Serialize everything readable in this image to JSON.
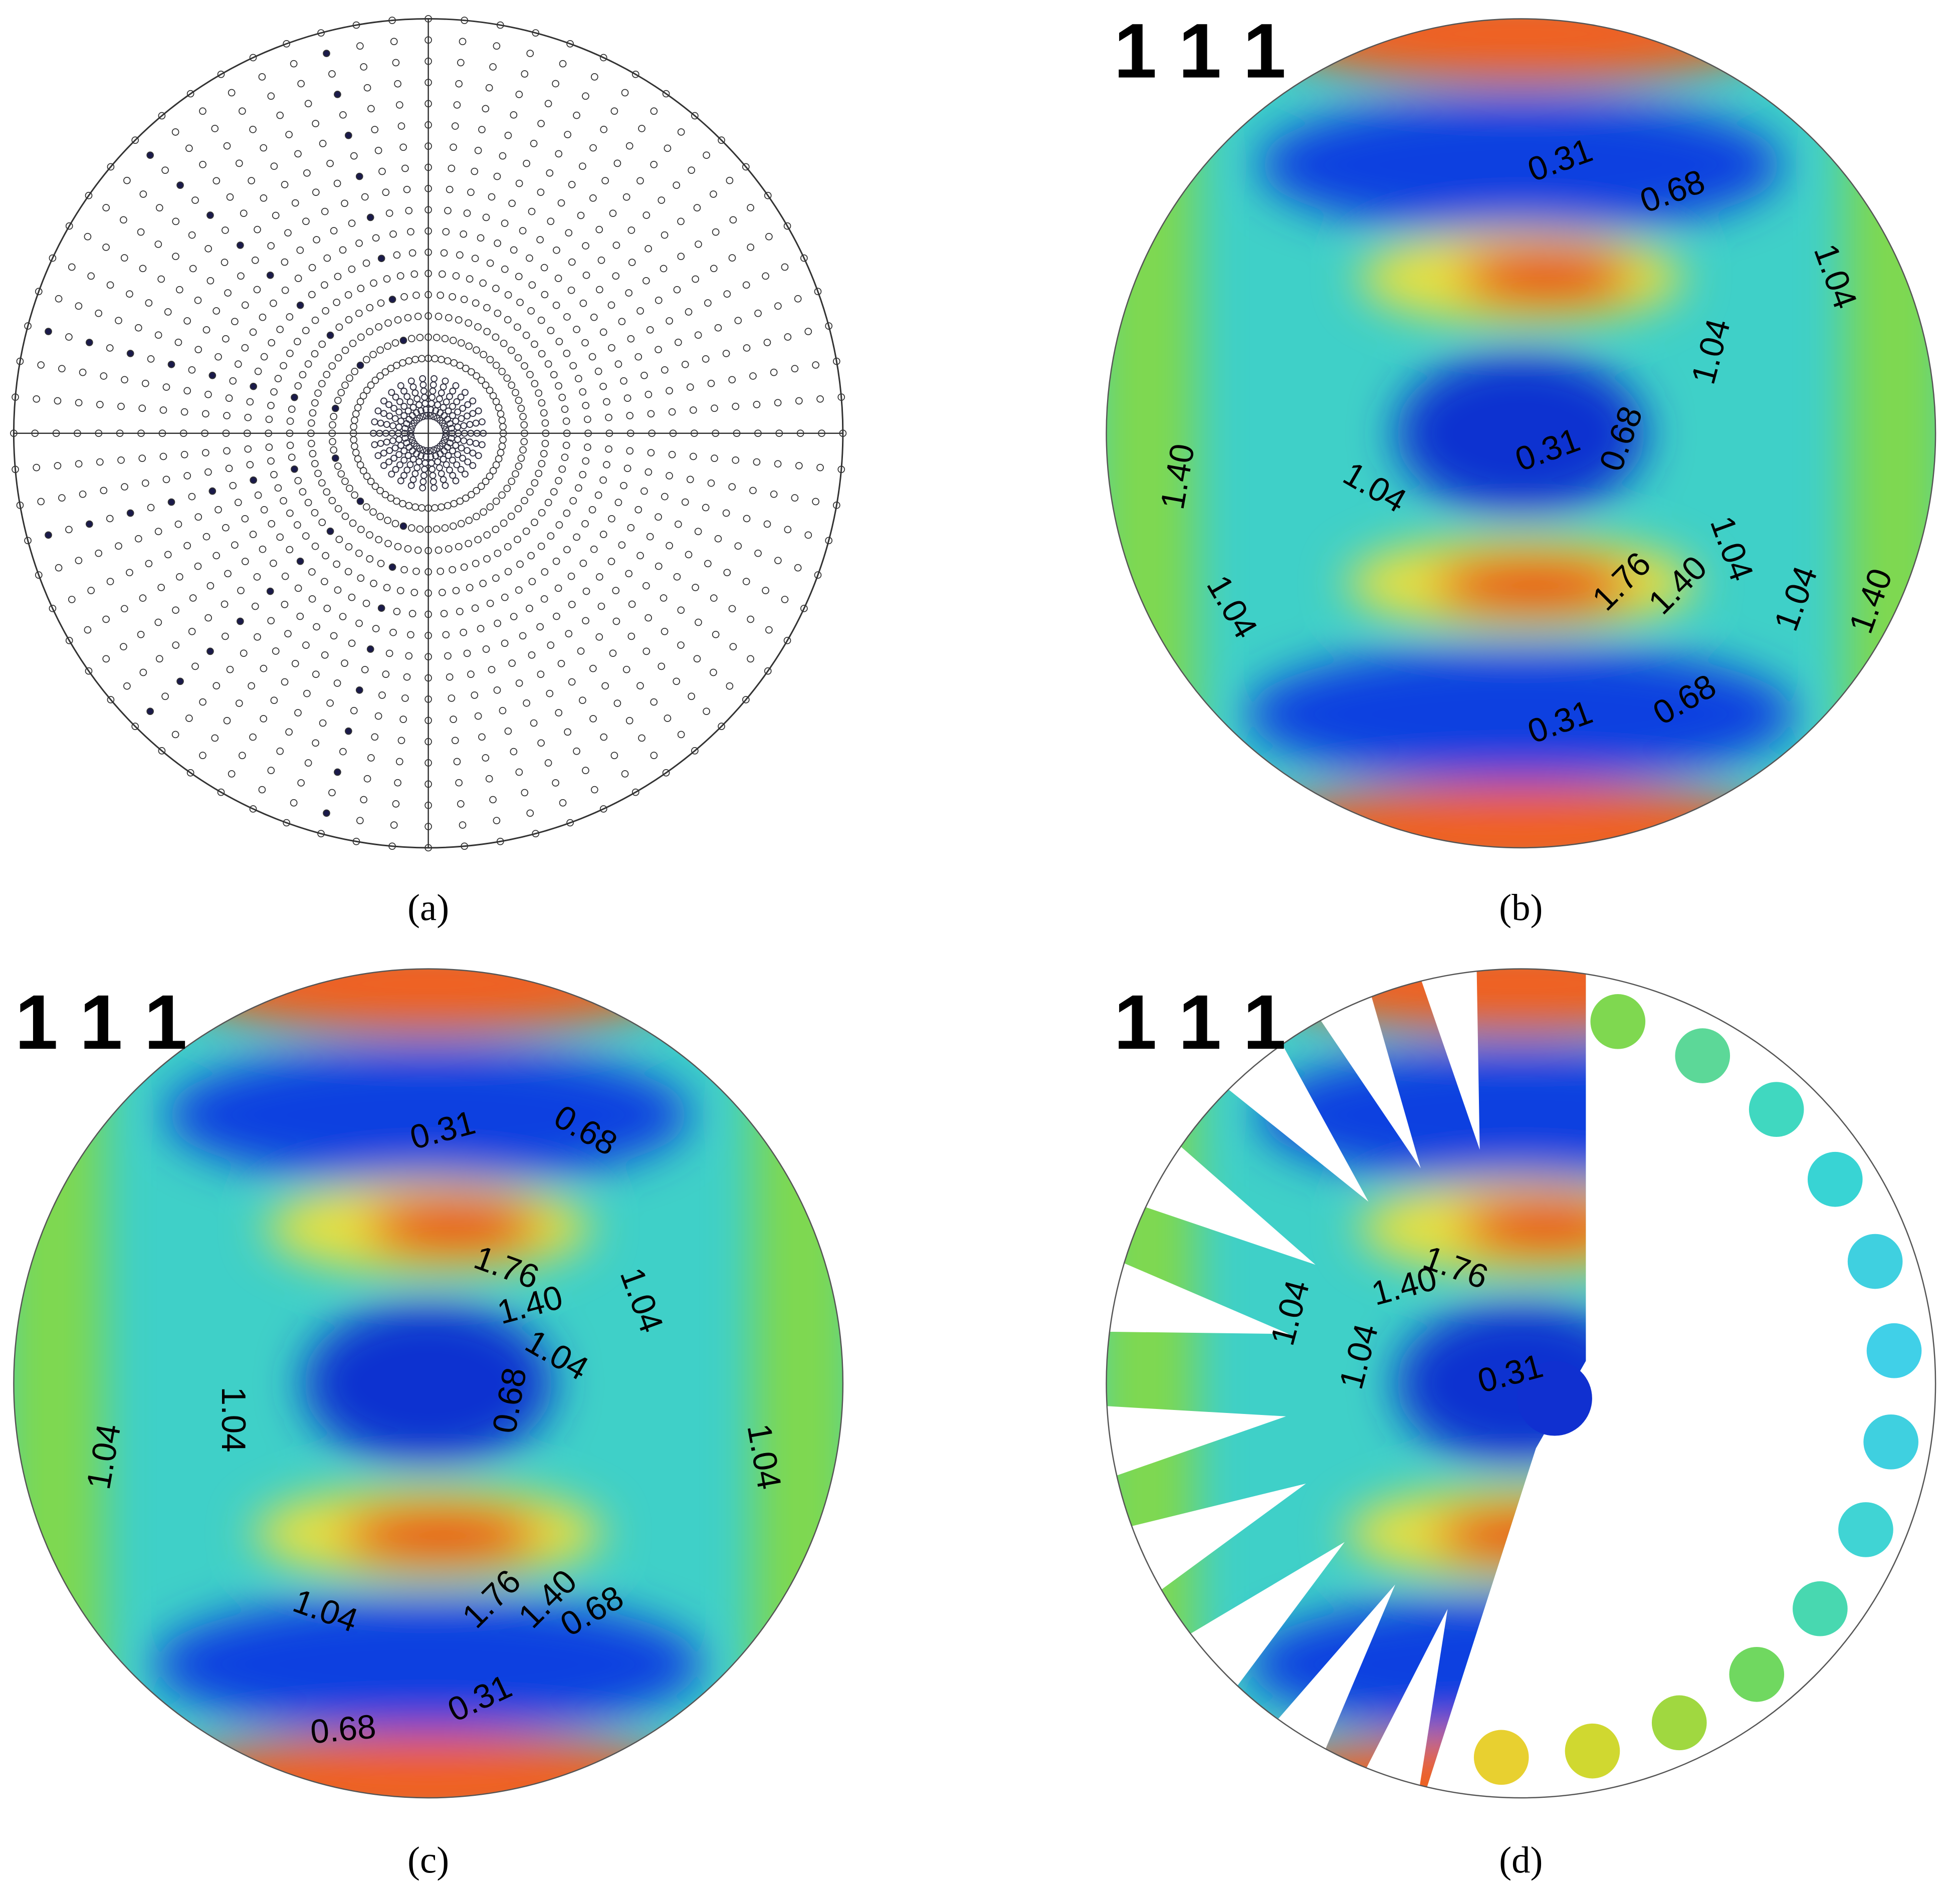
{
  "panels": [
    {
      "caption": "(a)"
    },
    {
      "heading": "1 1 1",
      "caption": "(b)",
      "contour_labels": [
        "0.31",
        "0.68",
        "1.04",
        "1.04",
        "0.31",
        "0.68",
        "1.04",
        "1.40",
        "1.76",
        "1.40",
        "1.04",
        "1.04",
        "1.04",
        "1.40",
        "0.31",
        "0.68"
      ]
    },
    {
      "heading": "1 1 1",
      "caption": "(c)",
      "contour_labels": [
        "0.31",
        "0.68",
        "1.76",
        "1.40",
        "1.04",
        "1.04",
        "0.68",
        "1.04",
        "1.04",
        "1.04",
        "1.76",
        "1.40",
        "1.04",
        "0.68",
        "0.31",
        "0.68"
      ]
    },
    {
      "heading": "1 1 1",
      "caption": "(d)",
      "contour_labels": [
        "1.76",
        "1.40",
        "1.04",
        "1.04",
        "0.31"
      ]
    }
  ]
}
